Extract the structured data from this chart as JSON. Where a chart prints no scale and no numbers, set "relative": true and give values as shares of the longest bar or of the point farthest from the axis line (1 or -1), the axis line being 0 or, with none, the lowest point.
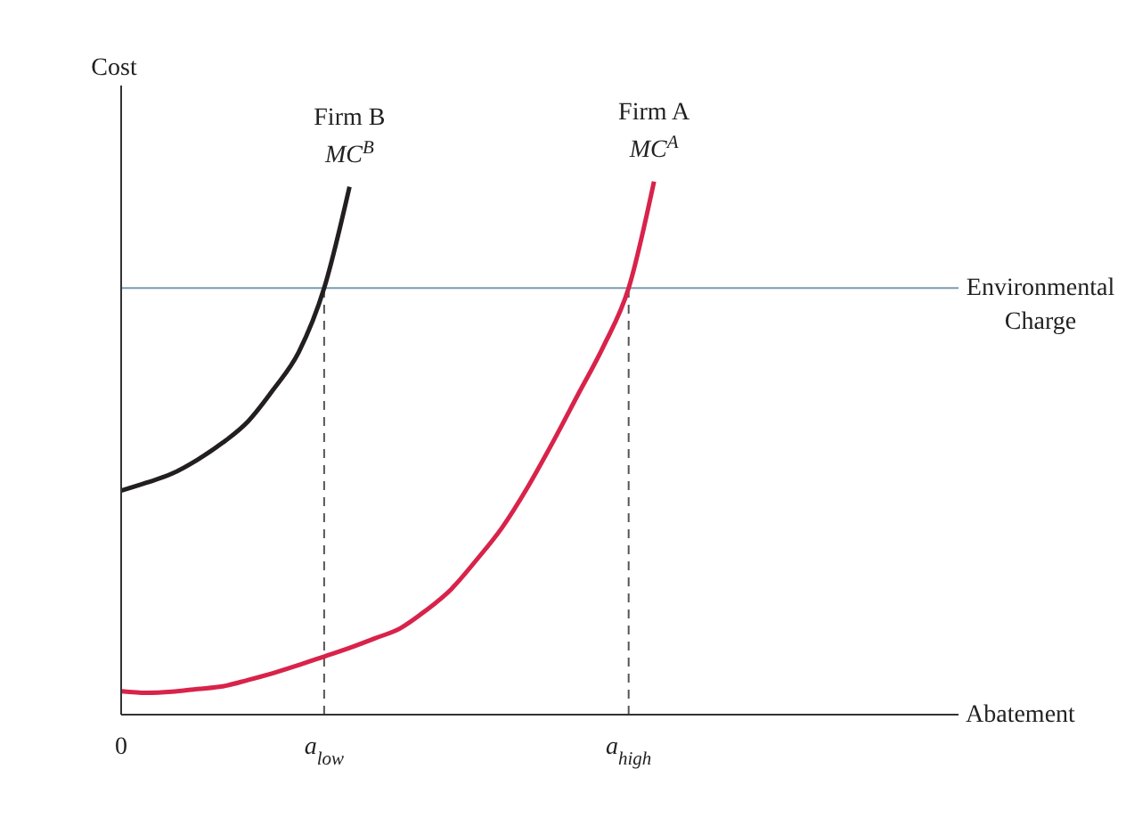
{
  "chart_data": {
    "type": "line",
    "relative": true,
    "xlabel": "Abatement",
    "ylabel": "Cost",
    "categories": [
      "0",
      null,
      null,
      null,
      null,
      null,
      null,
      null,
      "a$_{low}$",
      null,
      null,
      null,
      null,
      null,
      null,
      null,
      null,
      null,
      null,
      null,
      "a$_{high}$",
      null,
      null,
      null,
      null,
      null,
      null,
      null,
      null,
      null,
      null,
      null,
      null,
      null
    ],
    "series": [
      {
        "name": "Firm B",
        "color": "#231f20",
        "values": [
          0.42,
          0.435,
          0.452,
          0.478,
          0.51,
          0.55,
          0.61,
          0.68,
          0.8,
          0.99,
          null,
          null,
          null,
          null,
          null,
          null,
          null,
          null,
          null,
          null,
          null,
          null,
          null,
          null,
          null,
          null,
          null,
          null,
          null,
          null,
          null,
          null,
          null,
          null
        ]
      },
      {
        "name": "Firm A",
        "color": "#d8234a",
        "values": [
          0.044,
          0.041,
          0.043,
          0.048,
          0.053,
          0.065,
          0.078,
          0.093,
          0.109,
          0.125,
          0.143,
          0.162,
          0.195,
          0.235,
          0.29,
          0.35,
          0.425,
          0.51,
          0.6,
          0.69,
          0.8,
          1,
          null,
          null,
          null,
          null,
          null,
          null,
          null,
          null,
          null,
          null,
          null,
          null
        ]
      }
    ],
    "annotations": [
      "MC$^{B}$",
      "MC$^{A}$"
    ],
    "ref_lines": [
      {
        "axis": "y",
        "value": 0.8,
        "label": "Environmental Charge",
        "color": "#7a9bb0",
        "line_style": "solid"
      },
      {
        "axis": "x",
        "value": "a$_{low}$",
        "color": "#555555",
        "line_style": "dashed"
      },
      {
        "axis": "x",
        "value": "a$_{high}$",
        "color": "#555555",
        "line_style": "dashed"
      }
    ],
    "grid": false,
    "legend": false,
    "marker": "none",
    "line_style": "solid"
  }
}
